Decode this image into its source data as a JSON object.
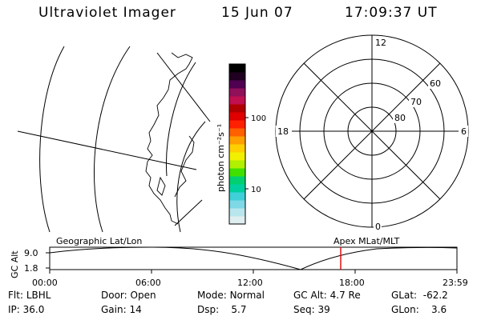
{
  "header": {
    "title": "Ultraviolet Imager",
    "date": "15 Jun 07",
    "time": "17:09:37 UT"
  },
  "colorbar": {
    "unit_label": "photon cm⁻²s⁻¹",
    "tick_100": "100",
    "tick_10": "10",
    "colors": [
      "#dfeef0",
      "#b8e6ec",
      "#7fd8e6",
      "#3fd0d8",
      "#00d0a0",
      "#00d070",
      "#40e000",
      "#b0f000",
      "#f0f000",
      "#ffd000",
      "#ffa000",
      "#ff6000",
      "#ff2000",
      "#e00000",
      "#b00000",
      "#c01050",
      "#90105a",
      "#500050",
      "#200020",
      "#000000"
    ]
  },
  "polar": {
    "mlt_top": "12",
    "mlt_left": "18",
    "mlt_right": "6",
    "mlt_bottom": "0",
    "lat_60": "60",
    "lat_70": "70",
    "lat_80": "80"
  },
  "timeline": {
    "left_label": "Geographic Lat/Lon",
    "right_label": "Apex MLat/MLT",
    "y_axis_label": "GC Alt",
    "y_ticks": [
      "9.0",
      "1.8"
    ],
    "x_ticks": [
      "00:00",
      "06:00",
      "12:00",
      "18:00",
      "23:59"
    ],
    "current_time_marker_color": "#e00000"
  },
  "status": {
    "filter_label": "Flt:",
    "filter_value": "LBHL",
    "ip_label": "IP:",
    "ip_value": "36.0",
    "door_label": "Door:",
    "door_value": "Open",
    "gain_label": "Gain:",
    "gain_value": "14",
    "mode_label": "Mode:",
    "mode_value": "Normal",
    "dsp_label": "Dsp:",
    "dsp_value": "5.7",
    "gcalt_label": "GC Alt:",
    "gcalt_value": "4.7 Re",
    "seq_label": "Seq:",
    "seq_value": "39",
    "glat_label": "GLat:",
    "glat_value": "-62.2",
    "glon_label": "GLon:",
    "glon_value": "3.6"
  }
}
